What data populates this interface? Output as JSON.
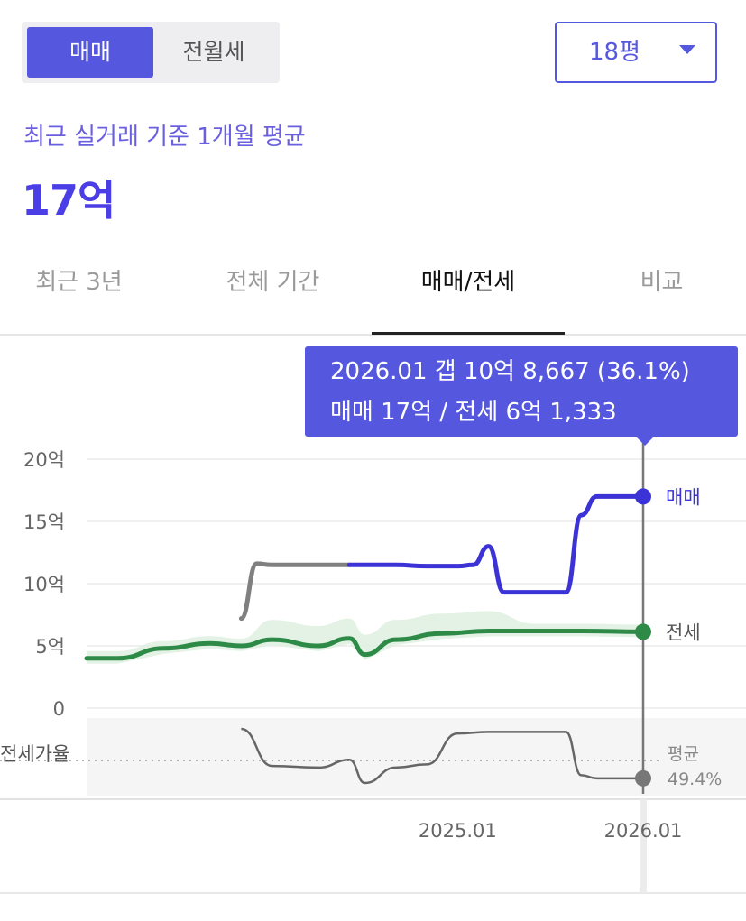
{
  "deal_type_toggle": {
    "options": [
      "매매",
      "전월세"
    ],
    "selected": "매매"
  },
  "size_select": {
    "value": "18평"
  },
  "summary": {
    "label": "최근 실거래 기준 1개월 평균",
    "value": "17억"
  },
  "period_tabs": {
    "items": [
      "최근 3년",
      "전체 기간",
      "매매/전세",
      "비교"
    ],
    "selected": "매매/전세"
  },
  "tooltip": {
    "line1": "2026.01  갭 10억 8,667 (36.1%)",
    "line2": "매매 17억 / 전세 6억 1,333"
  },
  "colors": {
    "accent": "#5558de",
    "sale": "#3c33d6",
    "sale_past": "#808080",
    "jeonse": "#2e8b47",
    "ratio": "#666666"
  },
  "chart_data": [
    {
      "type": "line",
      "x_ticks": [
        "2025.01",
        "2026.01"
      ],
      "y_ticks": [
        "0",
        "5억",
        "10억",
        "15억",
        "20억"
      ],
      "ylim": [
        0,
        20
      ],
      "grid": true,
      "series": [
        {
          "name": "매매",
          "unit": "억",
          "points": [
            [
              "2023.11",
              7.2
            ],
            [
              "2023.12",
              11.6
            ],
            [
              "2024.01",
              11.5
            ],
            [
              "2024.03",
              11.5
            ],
            [
              "2024.06",
              11.5
            ],
            [
              "2024.09",
              11.5
            ],
            [
              "2024.11",
              11.4
            ],
            [
              "2025.01",
              11.4
            ],
            [
              "2025.02",
              11.5
            ],
            [
              "2025.03",
              13.0
            ],
            [
              "2025.04",
              9.3
            ],
            [
              "2025.06",
              9.3
            ],
            [
              "2025.08",
              9.3
            ],
            [
              "2025.09",
              15.5
            ],
            [
              "2025.10",
              17.0
            ],
            [
              "2025.12",
              17.0
            ],
            [
              "2026.01",
              17.0
            ]
          ]
        },
        {
          "name": "전세",
          "unit": "억",
          "points": [
            [
              "2023.01",
              4.0
            ],
            [
              "2023.03",
              4.0
            ],
            [
              "2023.06",
              4.8
            ],
            [
              "2023.09",
              5.2
            ],
            [
              "2023.11",
              5.0
            ],
            [
              "2024.01",
              5.5
            ],
            [
              "2024.04",
              5.0
            ],
            [
              "2024.06",
              5.6
            ],
            [
              "2024.07",
              4.3
            ],
            [
              "2024.09",
              5.5
            ],
            [
              "2024.12",
              6.0
            ],
            [
              "2025.03",
              6.2
            ],
            [
              "2025.06",
              6.2
            ],
            [
              "2025.09",
              6.2
            ],
            [
              "2026.01",
              6.13
            ]
          ]
        }
      ],
      "end_labels": [
        "매매",
        "전세"
      ]
    },
    {
      "type": "line",
      "ylabel": "전세가율",
      "average_label": "평균",
      "average_value": "49.4%",
      "series": [
        {
          "name": "전세가율",
          "unit": "%",
          "points": [
            [
              "2023.11",
              68
            ],
            [
              "2024.01",
              44
            ],
            [
              "2024.04",
              43
            ],
            [
              "2024.06",
              48
            ],
            [
              "2024.07",
              33
            ],
            [
              "2024.09",
              43
            ],
            [
              "2024.11",
              45
            ],
            [
              "2025.01",
              65
            ],
            [
              "2025.03",
              66
            ],
            [
              "2025.06",
              66
            ],
            [
              "2025.08",
              66
            ],
            [
              "2025.09",
              38
            ],
            [
              "2025.10",
              36
            ],
            [
              "2026.01",
              36
            ]
          ]
        }
      ]
    }
  ]
}
